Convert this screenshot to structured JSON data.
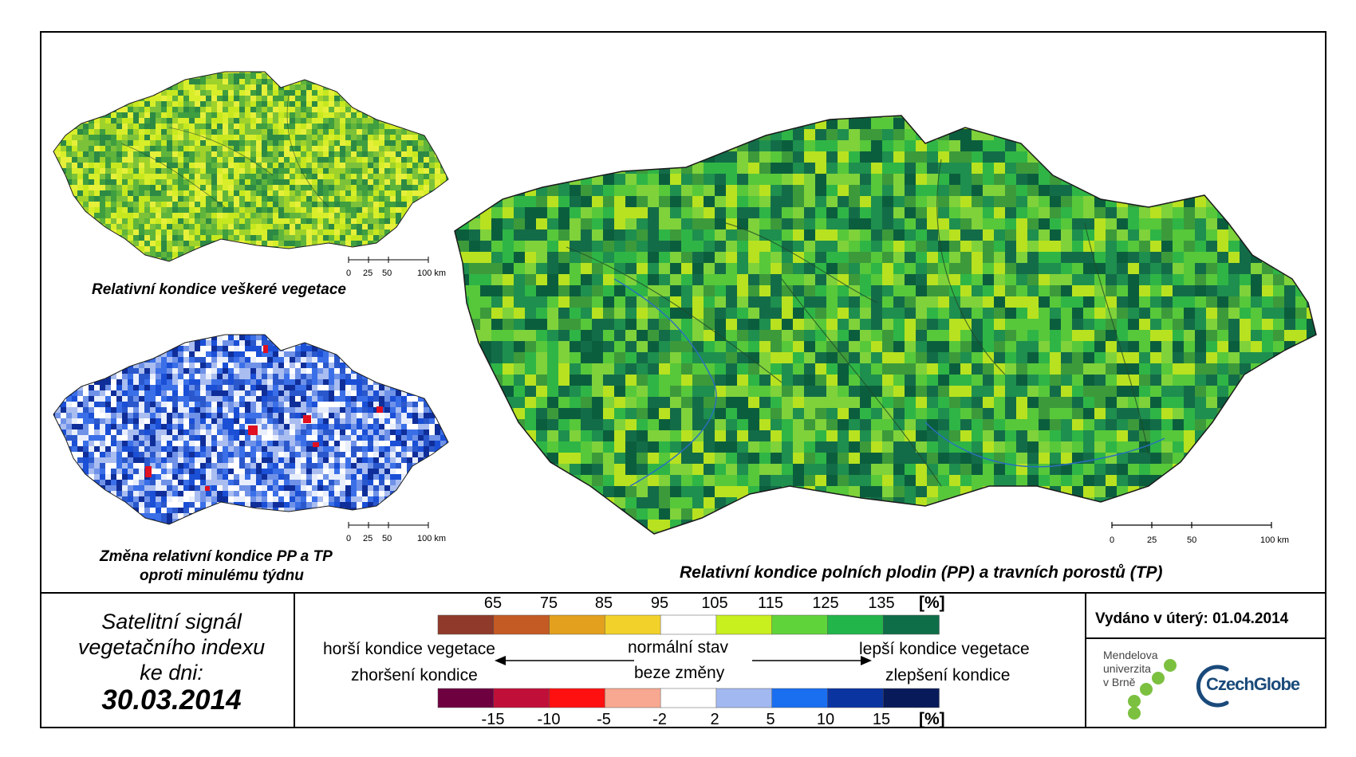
{
  "main_map": {
    "caption": "Relativní kondice polních plodin (PP) a travních porostů (TP)",
    "palette": [
      "#3d9a3a",
      "#1e8f4e",
      "#2fb546",
      "#57c83a",
      "#7fd23a",
      "#b8e21f",
      "#136c48",
      "#0b5e3d"
    ]
  },
  "top_left_map": {
    "caption": "Relativní kondice veškeré vegetace",
    "palette": [
      "#9fd22a",
      "#c7e81f",
      "#7cc13a",
      "#3f9e3f",
      "#d8ee2a",
      "#5fb43c",
      "#2d8a44",
      "#e6f03a"
    ]
  },
  "bottom_left_map": {
    "caption_line1": "Změna relativní kondice PP a TP",
    "caption_line2": "oproti minulému týdnu",
    "palette": [
      "#1a4fd6",
      "#3a6fe8",
      "#6f92e8",
      "#a9bdf0",
      "#ffffff",
      "#0f2e9a",
      "#2a58cc",
      "#e8eefb"
    ]
  },
  "scale_bar": {
    "labels": [
      "0",
      "25",
      "50",
      "100 km"
    ]
  },
  "satellite_box": {
    "line1": "Satelitní signál",
    "line2": "vegetačního indexu",
    "line3": "ke dni:",
    "date": "30.03.2014"
  },
  "legend": {
    "top_ticks": [
      "65",
      "75",
      "85",
      "95",
      "105",
      "115",
      "125",
      "135"
    ],
    "top_unit": "[%]",
    "top_colors": [
      "#8f3a2a",
      "#c45a24",
      "#e3a01e",
      "#f2d22a",
      "#ffffff",
      "#c8ef1e",
      "#5fd43a",
      "#22b54a",
      "#0e6e48"
    ],
    "bottom_ticks": [
      "-15",
      "-10",
      "-5",
      "-2",
      "2",
      "5",
      "10",
      "15"
    ],
    "bottom_unit": "[%]",
    "bottom_colors": [
      "#6e0040",
      "#c0103a",
      "#ff1010",
      "#f8a890",
      "#ffffff",
      "#a2b8f0",
      "#1a6ef0",
      "#0a34a0",
      "#081a5a"
    ],
    "worse_condition": "horší kondice vegetace",
    "worse_change": "zhoršení kondice",
    "normal_state": "normální stav",
    "no_change": "beze změny",
    "better_condition": "lepší kondice vegetace",
    "better_change": "zlepšení kondice"
  },
  "issue": {
    "text": "Vydáno v úterý: 01.04.2014"
  },
  "logos": {
    "mendel_line1": "Mendelova",
    "mendel_line2": "univerzita",
    "mendel_line3": "v Brně",
    "mendel_dot_color": "#7cc040",
    "czechglobe": "CzechGlobe",
    "czechglobe_arc_color": "#1a4a7a"
  }
}
